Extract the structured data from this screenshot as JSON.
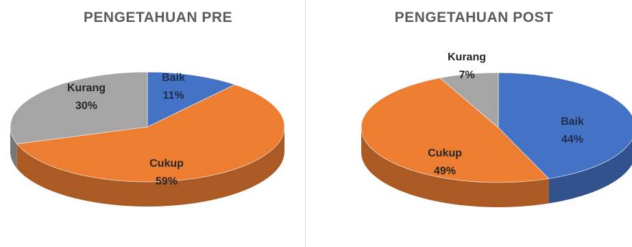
{
  "chart_data": [
    {
      "type": "pie",
      "title": "PENGETAHUAN PRE",
      "slices": [
        {
          "label": "Baik",
          "value": 11,
          "display": "11%",
          "color": "#4472c4"
        },
        {
          "label": "Cukup",
          "value": 59,
          "display": "59%",
          "color": "#ed7d31"
        },
        {
          "label": "Kurang",
          "value": 30,
          "display": "30%",
          "color": "#a5a5a5"
        }
      ]
    },
    {
      "type": "pie",
      "title": "PENGETAHUAN POST",
      "slices": [
        {
          "label": "Baik",
          "value": 44,
          "display": "44%",
          "color": "#4472c4"
        },
        {
          "label": "Cukup",
          "value": 49,
          "display": "49%",
          "color": "#ed7d31"
        },
        {
          "label": "Kurang",
          "value": 7,
          "display": "7%",
          "color": "#a5a5a5"
        }
      ]
    }
  ]
}
